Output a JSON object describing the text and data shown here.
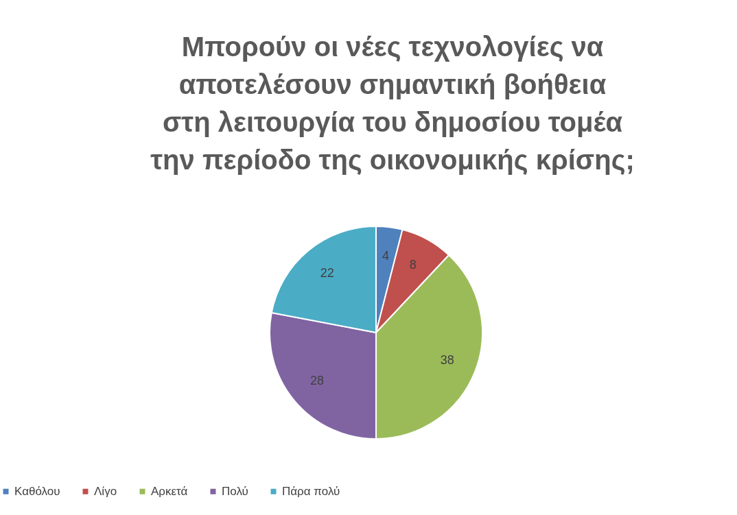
{
  "chart_data": {
    "type": "pie",
    "title": "Μπορούν οι νέες τεχνολογίες να\nαποτελέσουν σημαντική βοήθεια\nστη λειτουργία του δημοσίου τομέα\nτην περίοδο της οικονομικής κρίσης;",
    "categories": [
      "Καθόλου",
      "Λίγο",
      "Αρκετά",
      "Πολύ",
      "Πάρα πολύ"
    ],
    "values": [
      4,
      8,
      38,
      28,
      22
    ],
    "colors": [
      "#4f81bd",
      "#c0504d",
      "#9bbb59",
      "#8064a2",
      "#4bacc6"
    ],
    "data_labels": true,
    "legend": "bottom"
  }
}
